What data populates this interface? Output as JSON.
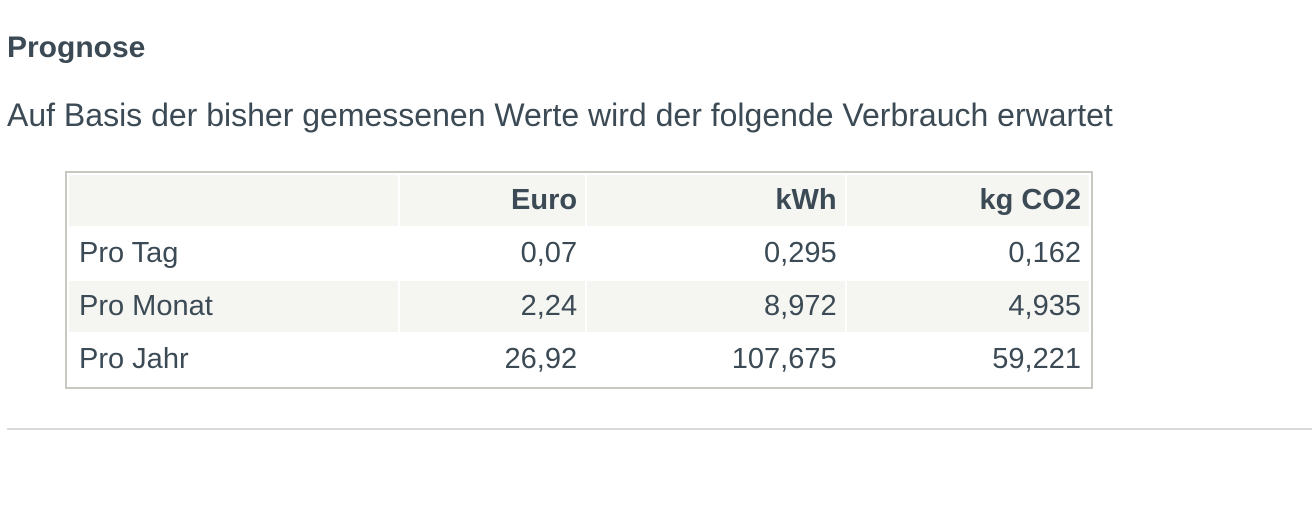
{
  "page": {
    "title": "Prognose",
    "subtitle": "Auf Basis der bisher gemessenen Werte wird der folgende Verbrauch erwartet"
  },
  "table": {
    "columns": [
      "",
      "Euro",
      "kWh",
      "kg CO2"
    ],
    "rows": [
      {
        "label": "Pro Tag",
        "euro": "0,07",
        "kwh": "0,295",
        "co2": "0,162"
      },
      {
        "label": "Pro Monat",
        "euro": "2,24",
        "kwh": "8,972",
        "co2": "4,935"
      },
      {
        "label": "Pro Jahr",
        "euro": "26,92",
        "kwh": "107,675",
        "co2": "59,221"
      }
    ]
  },
  "colors": {
    "text": "#3b4a54",
    "table_border": "#c8c8c0",
    "stripe_bg": "#f5f5f2",
    "divider": "#d9d9d9",
    "background": "#ffffff"
  }
}
